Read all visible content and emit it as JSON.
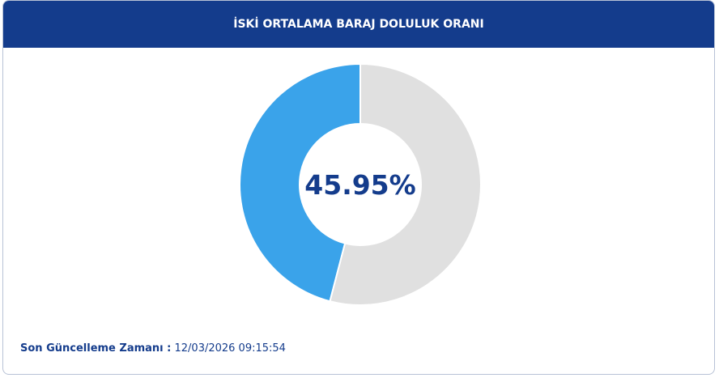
{
  "chart_data": {
    "type": "donut",
    "title": "İSKİ ORTALAMA BARAJ DOLULUK ORANI",
    "values": [
      45.95,
      54.05
    ],
    "value_labels": [
      "45.95%",
      null
    ],
    "colors": [
      "#3aa3ea",
      "#e0e0e0"
    ]
  },
  "footer": {
    "label": "Son Güncelleme Zamanı :",
    "timestamp": "12/03/2026 09:15:54"
  }
}
